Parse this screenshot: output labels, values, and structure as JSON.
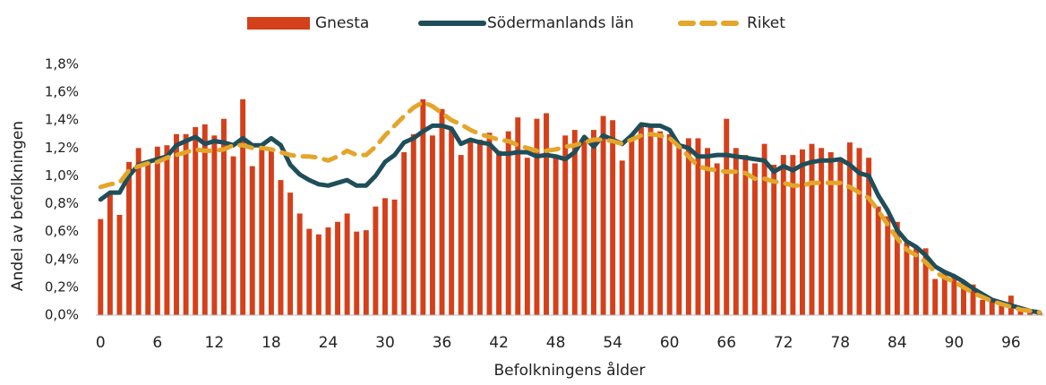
{
  "chart_data": {
    "type": "bar_line",
    "x_label": "Befolkningens ålder",
    "y_label": "Andel av befolkningen",
    "categories": [
      "0",
      null,
      null,
      null,
      null,
      null,
      "6",
      null,
      null,
      null,
      null,
      null,
      "12",
      null,
      null,
      null,
      null,
      null,
      "18",
      null,
      null,
      null,
      null,
      null,
      "24",
      null,
      null,
      null,
      null,
      null,
      "30",
      null,
      null,
      null,
      null,
      null,
      "36",
      null,
      null,
      null,
      null,
      null,
      "42",
      null,
      null,
      null,
      null,
      null,
      "48",
      null,
      null,
      null,
      null,
      null,
      "54",
      null,
      null,
      null,
      null,
      null,
      "60",
      null,
      null,
      null,
      null,
      null,
      "66",
      null,
      null,
      null,
      null,
      null,
      "72",
      null,
      null,
      null,
      null,
      null,
      "78",
      null,
      null,
      null,
      null,
      null,
      "84",
      null,
      null,
      null,
      null,
      null,
      "90",
      null,
      null,
      null,
      null,
      null,
      "96",
      null,
      null,
      null
    ],
    "ylim": [
      0,
      1.8
    ],
    "yticks": [
      {
        "value": 0,
        "label": "0,0%"
      },
      {
        "value": 0.2,
        "label": "0,2%"
      },
      {
        "value": 0.4,
        "label": "0,4%"
      },
      {
        "value": 0.6,
        "label": "0,6%"
      },
      {
        "value": 0.8,
        "label": "0,8%"
      },
      {
        "value": 1.0,
        "label": "1,0%"
      },
      {
        "value": 1.2,
        "label": "1,2%"
      },
      {
        "value": 1.4,
        "label": "1,4%"
      },
      {
        "value": 1.6,
        "label": "1,6%"
      },
      {
        "value": 1.8,
        "label": "1,8%"
      }
    ],
    "legend": "top",
    "series": [
      {
        "name": "Gnesta",
        "type": "bar",
        "color": "#d4401a",
        "values": [
          0.69,
          0.88,
          0.72,
          1.1,
          1.2,
          1.1,
          1.21,
          1.22,
          1.3,
          1.3,
          1.35,
          1.37,
          1.29,
          1.41,
          1.14,
          1.55,
          1.07,
          1.22,
          1.18,
          0.97,
          0.88,
          0.73,
          0.62,
          0.58,
          0.63,
          0.67,
          0.73,
          0.6,
          0.61,
          0.78,
          0.84,
          0.83,
          1.17,
          1.3,
          1.55,
          1.29,
          1.48,
          1.33,
          1.15,
          1.25,
          1.26,
          1.31,
          1.18,
          1.32,
          1.42,
          1.13,
          1.41,
          1.45,
          1.13,
          1.29,
          1.33,
          1.25,
          1.33,
          1.43,
          1.4,
          1.11,
          1.28,
          1.37,
          1.35,
          1.32,
          1.3,
          1.22,
          1.27,
          1.27,
          1.2,
          1.09,
          1.41,
          1.2,
          1.15,
          1.09,
          1.23,
          1.08,
          1.15,
          1.15,
          1.19,
          1.23,
          1.2,
          1.17,
          1.13,
          1.24,
          1.2,
          1.13,
          0.78,
          0.71,
          0.67,
          0.52,
          0.48,
          0.48,
          0.26,
          0.3,
          0.28,
          0.24,
          0.22,
          0.11,
          0.11,
          0.09,
          0.14,
          0.05,
          0.03,
          0.02
        ]
      },
      {
        "name": "Södermanlands län",
        "type": "line",
        "color": "#1f4e5a",
        "values": [
          0.83,
          0.88,
          0.88,
          1.0,
          1.08,
          1.1,
          1.12,
          1.14,
          1.22,
          1.25,
          1.28,
          1.23,
          1.25,
          1.24,
          1.22,
          1.27,
          1.22,
          1.22,
          1.27,
          1.22,
          1.08,
          1.01,
          0.97,
          0.94,
          0.93,
          0.95,
          0.97,
          0.93,
          0.93,
          1.0,
          1.1,
          1.15,
          1.24,
          1.27,
          1.32,
          1.36,
          1.36,
          1.34,
          1.23,
          1.26,
          1.24,
          1.23,
          1.16,
          1.16,
          1.17,
          1.17,
          1.14,
          1.15,
          1.14,
          1.12,
          1.17,
          1.28,
          1.21,
          1.29,
          1.26,
          1.23,
          1.29,
          1.37,
          1.36,
          1.36,
          1.33,
          1.22,
          1.2,
          1.14,
          1.14,
          1.15,
          1.15,
          1.14,
          1.13,
          1.12,
          1.11,
          1.03,
          1.07,
          1.04,
          1.08,
          1.1,
          1.11,
          1.11,
          1.12,
          1.08,
          1.02,
          1.0,
          0.86,
          0.75,
          0.61,
          0.53,
          0.49,
          0.43,
          0.35,
          0.31,
          0.28,
          0.24,
          0.19,
          0.15,
          0.11,
          0.09,
          0.07,
          0.05,
          0.03,
          0.02
        ]
      },
      {
        "name": "Riket",
        "type": "dashed",
        "color": "#e3a62b",
        "values": [
          0.92,
          0.94,
          0.95,
          1.04,
          1.07,
          1.09,
          1.1,
          1.13,
          1.15,
          1.17,
          1.19,
          1.18,
          1.18,
          1.19,
          1.22,
          1.22,
          1.2,
          1.2,
          1.19,
          1.17,
          1.15,
          1.14,
          1.14,
          1.13,
          1.11,
          1.14,
          1.18,
          1.15,
          1.15,
          1.21,
          1.29,
          1.36,
          1.43,
          1.49,
          1.53,
          1.5,
          1.45,
          1.4,
          1.37,
          1.33,
          1.3,
          1.28,
          1.26,
          1.25,
          1.22,
          1.2,
          1.18,
          1.18,
          1.19,
          1.21,
          1.22,
          1.24,
          1.26,
          1.26,
          1.25,
          1.23,
          1.26,
          1.29,
          1.3,
          1.29,
          1.27,
          1.21,
          1.14,
          1.07,
          1.05,
          1.04,
          1.03,
          1.03,
          1.02,
          0.98,
          0.98,
          0.96,
          0.95,
          0.93,
          0.93,
          0.95,
          0.95,
          0.95,
          0.95,
          0.92,
          0.88,
          0.84,
          0.75,
          0.65,
          0.55,
          0.47,
          0.43,
          0.38,
          0.31,
          0.27,
          0.24,
          0.2,
          0.16,
          0.13,
          0.1,
          0.08,
          0.06,
          0.04,
          0.03,
          0.02
        ]
      }
    ]
  }
}
